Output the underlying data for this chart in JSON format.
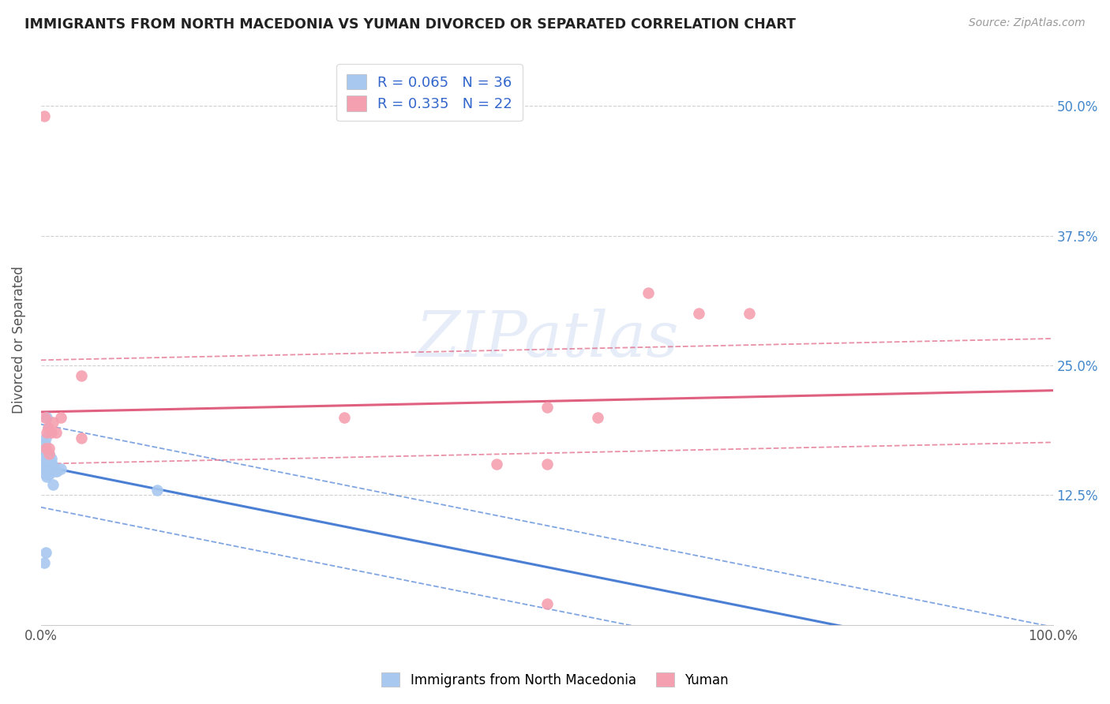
{
  "title": "IMMIGRANTS FROM NORTH MACEDONIA VS YUMAN DIVORCED OR SEPARATED CORRELATION CHART",
  "source": "Source: ZipAtlas.com",
  "ylabel": "Divorced or Separated",
  "xlim": [
    0.0,
    1.0
  ],
  "ylim": [
    0.0,
    0.55
  ],
  "yticks": [
    0.0,
    0.125,
    0.25,
    0.375,
    0.5
  ],
  "ytick_labels_right": [
    "",
    "12.5%",
    "25.0%",
    "37.5%",
    "50.0%"
  ],
  "xtick_labels": [
    "0.0%",
    "",
    "",
    "",
    "100.0%"
  ],
  "legend_labels": [
    "Immigrants from North Macedonia",
    "Yuman"
  ],
  "R_blue": 0.065,
  "N_blue": 36,
  "R_pink": 0.335,
  "N_pink": 22,
  "blue_color": "#a8c8f0",
  "pink_color": "#f5a0b0",
  "blue_line_color": "#4a7fd4",
  "pink_line_color": "#e06080",
  "watermark_text": "ZIPatlas",
  "blue_x": [
    0.001,
    0.002,
    0.002,
    0.003,
    0.003,
    0.003,
    0.003,
    0.003,
    0.004,
    0.004,
    0.004,
    0.004,
    0.005,
    0.005,
    0.005,
    0.005,
    0.006,
    0.006,
    0.006,
    0.007,
    0.007,
    0.008,
    0.008,
    0.009,
    0.009,
    0.01,
    0.01,
    0.011,
    0.012,
    0.013,
    0.014,
    0.016,
    0.02,
    0.115,
    0.003,
    0.005
  ],
  "blue_y": [
    0.155,
    0.16,
    0.165,
    0.15,
    0.153,
    0.157,
    0.162,
    0.168,
    0.148,
    0.152,
    0.158,
    0.175,
    0.145,
    0.15,
    0.165,
    0.18,
    0.143,
    0.155,
    0.2,
    0.148,
    0.19,
    0.145,
    0.165,
    0.148,
    0.158,
    0.148,
    0.16,
    0.155,
    0.135,
    0.152,
    0.148,
    0.148,
    0.15,
    0.13,
    0.06,
    0.07
  ],
  "pink_x": [
    0.003,
    0.004,
    0.006,
    0.007,
    0.008,
    0.01,
    0.012,
    0.015,
    0.02,
    0.04,
    0.04,
    0.3,
    0.45,
    0.5,
    0.55,
    0.6,
    0.65,
    0.7,
    0.005,
    0.008,
    0.5,
    0.5
  ],
  "pink_y": [
    0.49,
    0.2,
    0.185,
    0.19,
    0.17,
    0.185,
    0.195,
    0.185,
    0.2,
    0.18,
    0.24,
    0.2,
    0.155,
    0.21,
    0.2,
    0.32,
    0.3,
    0.3,
    0.17,
    0.165,
    0.155,
    0.02
  ],
  "grid_color": "#d0d0d0",
  "grid_linestyle": "--",
  "grid_linewidth": 0.8
}
